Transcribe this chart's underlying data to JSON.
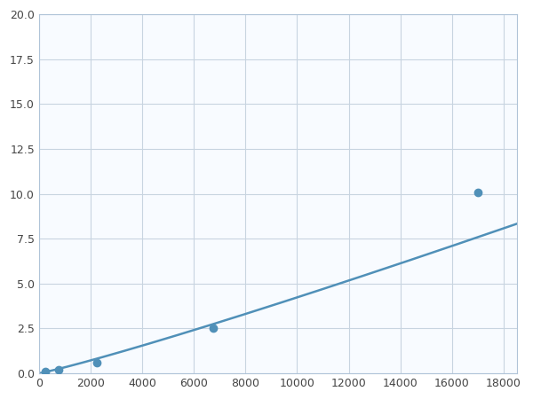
{
  "x": [
    250,
    750,
    2250,
    6750,
    17000
  ],
  "y": [
    0.1,
    0.2,
    0.6,
    2.5,
    10.1
  ],
  "line_color": "#5090b8",
  "marker_color": "#5090b8",
  "marker_size": 6,
  "xlim": [
    0,
    18500
  ],
  "ylim": [
    0,
    20
  ],
  "xticks": [
    0,
    2000,
    4000,
    6000,
    8000,
    10000,
    12000,
    14000,
    16000,
    18000
  ],
  "yticks": [
    0.0,
    2.5,
    5.0,
    7.5,
    10.0,
    12.5,
    15.0,
    17.5,
    20.0
  ],
  "grid_color": "#c8d4e0",
  "bg_color": "#f8fbff",
  "fig_bg_color": "#ffffff",
  "linewidth": 1.8
}
